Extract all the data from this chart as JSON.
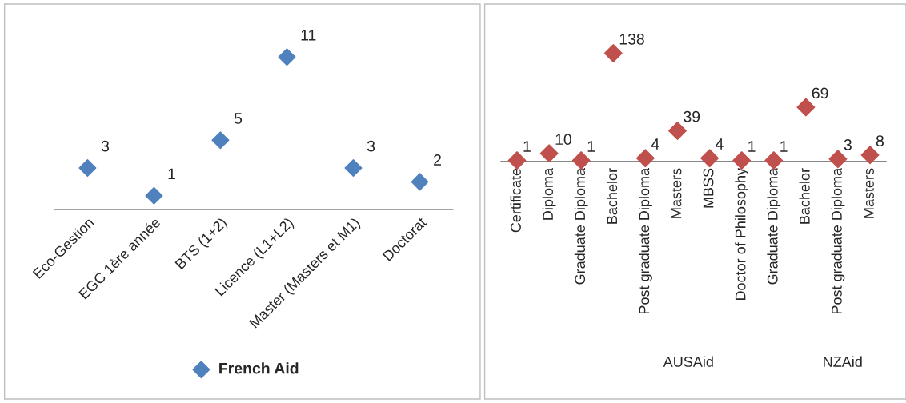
{
  "chart_data": [
    {
      "type": "scatter",
      "categories": [
        "Eco-Gestion",
        "EGC 1ère année",
        "BTS (1+2)",
        "Licence (L1+L2)",
        "Master (Masters et M1)",
        "Doctorat"
      ],
      "series": [
        {
          "name": "French Aid",
          "color": "#4f81bd",
          "values": [
            3,
            1,
            5,
            11,
            3,
            2
          ]
        }
      ],
      "marker": "diamond",
      "data_labels": true,
      "legend": "bottom",
      "grid": false
    },
    {
      "type": "scatter",
      "categories": [
        "Certificate",
        "Diploma",
        "Graduate Diploma",
        "Bachelor",
        "Post graduate Diploma",
        "Masters",
        "MBSS",
        "Doctor of Philosophy",
        "Graduate Diploma",
        "Bachelor",
        "Post graduate Diploma",
        "Masters"
      ],
      "series": [
        {
          "color": "#c0504d",
          "values": [
            1,
            10,
            1,
            138,
            4,
            39,
            4,
            1,
            1,
            69,
            3,
            8
          ]
        }
      ],
      "marker": "diamond",
      "data_labels": true,
      "legend": false,
      "grid": false,
      "annotations": [
        "AUSAid",
        "NZAid"
      ]
    }
  ]
}
